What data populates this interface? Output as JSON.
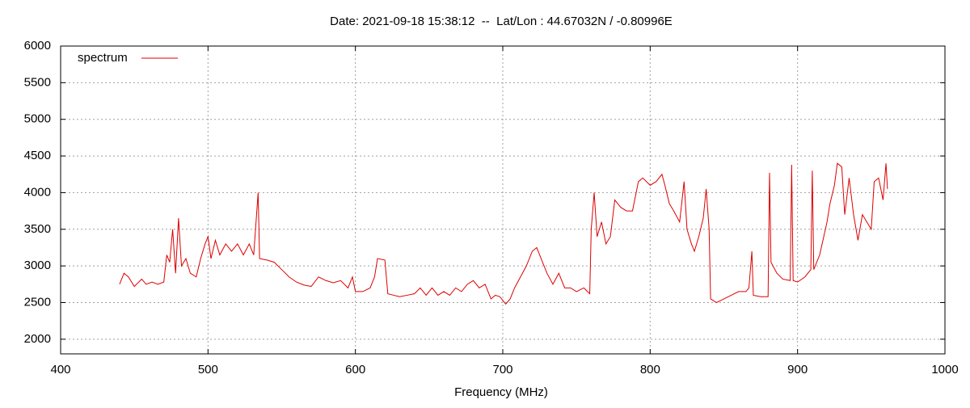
{
  "chart_data": {
    "type": "line",
    "title": "Date: 2021-09-18 15:38:12  --  Lat/Lon : 44.67032N / -0.80996E",
    "xlabel": "Frequency (MHz)",
    "xlim": [
      400,
      1000
    ],
    "xticks": [
      400,
      500,
      600,
      700,
      800,
      900,
      1000
    ],
    "ylim": [
      1800,
      6000
    ],
    "yticks": [
      2000,
      2500,
      3000,
      3500,
      4000,
      4500,
      5000,
      5500,
      6000
    ],
    "grid": true,
    "legend": "top-left",
    "x": [
      440,
      443,
      446,
      450,
      455,
      458,
      462,
      466,
      470,
      472,
      474,
      476,
      478,
      480,
      482,
      485,
      488,
      492,
      495,
      498,
      500,
      502,
      505,
      508,
      512,
      516,
      520,
      524,
      528,
      531,
      534,
      535,
      540,
      545,
      550,
      555,
      560,
      565,
      570,
      575,
      580,
      585,
      590,
      595,
      598,
      600,
      605,
      610,
      613,
      615,
      620,
      622,
      626,
      630,
      635,
      640,
      644,
      648,
      652,
      656,
      660,
      664,
      668,
      672,
      676,
      680,
      684,
      688,
      692,
      695,
      698,
      702,
      705,
      708,
      712,
      716,
      720,
      723,
      726,
      730,
      734,
      738,
      742,
      746,
      750,
      755,
      759,
      760,
      762,
      764,
      767,
      770,
      773,
      776,
      780,
      784,
      788,
      792,
      795,
      800,
      804,
      808,
      810,
      813,
      816,
      820,
      823,
      825,
      828,
      830,
      833,
      836,
      838,
      840,
      841,
      845,
      850,
      855,
      860,
      865,
      867,
      869,
      870,
      875,
      880,
      881,
      882,
      886,
      890,
      895,
      896,
      897,
      900,
      905,
      909,
      910,
      911,
      915,
      920,
      922,
      925,
      927,
      930,
      932,
      935,
      938,
      941,
      944,
      947,
      950,
      952,
      955,
      958,
      960,
      961
    ],
    "series": [
      {
        "name": "spectrum",
        "color": "#dd0000",
        "values": [
          2750,
          2900,
          2850,
          2720,
          2820,
          2750,
          2780,
          2750,
          2780,
          3150,
          3050,
          3500,
          2900,
          3650,
          3000,
          3100,
          2900,
          2850,
          3100,
          3300,
          3400,
          3100,
          3350,
          3150,
          3300,
          3200,
          3300,
          3150,
          3300,
          3150,
          4000,
          3100,
          3080,
          3050,
          2950,
          2850,
          2780,
          2740,
          2720,
          2850,
          2800,
          2770,
          2800,
          2700,
          2850,
          2650,
          2650,
          2700,
          2850,
          3100,
          3080,
          2620,
          2600,
          2580,
          2600,
          2620,
          2700,
          2600,
          2700,
          2600,
          2650,
          2600,
          2700,
          2650,
          2750,
          2800,
          2700,
          2750,
          2550,
          2600,
          2580,
          2480,
          2550,
          2700,
          2850,
          3000,
          3200,
          3250,
          3100,
          2900,
          2750,
          2900,
          2700,
          2700,
          2650,
          2700,
          2620,
          3500,
          4000,
          3400,
          3600,
          3300,
          3400,
          3900,
          3800,
          3750,
          3750,
          4150,
          4200,
          4100,
          4150,
          4250,
          4100,
          3850,
          3750,
          3600,
          4150,
          3500,
          3300,
          3200,
          3400,
          3650,
          4050,
          3500,
          2550,
          2500,
          2550,
          2600,
          2650,
          2650,
          2700,
          3200,
          2600,
          2580,
          2580,
          4270,
          3050,
          2900,
          2820,
          2800,
          4380,
          2800,
          2780,
          2850,
          2950,
          4300,
          2950,
          3150,
          3600,
          3850,
          4100,
          4400,
          4350,
          3700,
          4200,
          3700,
          3350,
          3700,
          3600,
          3500,
          4150,
          4200,
          3900,
          4400,
          4050
        ]
      }
    ]
  }
}
